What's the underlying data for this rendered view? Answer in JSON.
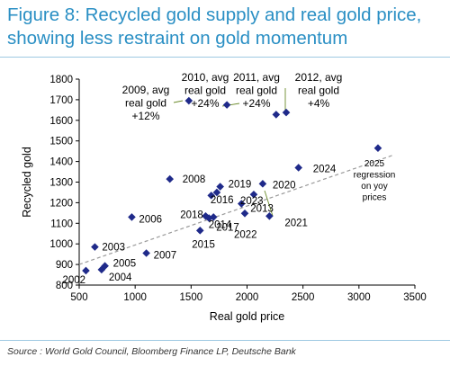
{
  "title": "Figure 8: Recycled gold supply and real gold price, showing less restraint on gold momentum",
  "source": "Source : World Gold Council, Bloomberg Finance LP, Deutsche Bank",
  "chart_data": {
    "type": "scatter",
    "xlabel": "Real gold price",
    "ylabel": "Recycled gold",
    "xlim": [
      500,
      3500
    ],
    "ylim": [
      800,
      1800
    ],
    "xticks": [
      500,
      1000,
      1500,
      2000,
      2500,
      3000,
      3500
    ],
    "yticks": [
      800,
      900,
      1000,
      1100,
      1200,
      1300,
      1400,
      1500,
      1600,
      1700,
      1800
    ],
    "grid": false,
    "marker_color": "#1f2a8a",
    "trendline": {
      "style": "dashed",
      "color": "#9a9a9a",
      "x": [
        500,
        3300
      ],
      "y": [
        900,
        1430
      ]
    },
    "points": [
      {
        "label": "2002",
        "x": 560,
        "y": 870
      },
      {
        "label": "2003",
        "x": 640,
        "y": 985
      },
      {
        "label": "2004",
        "x": 700,
        "y": 875
      },
      {
        "label": "2005",
        "x": 730,
        "y": 893
      },
      {
        "label": "2006",
        "x": 970,
        "y": 1130
      },
      {
        "label": "2007",
        "x": 1100,
        "y": 955
      },
      {
        "label": "2008",
        "x": 1310,
        "y": 1315
      },
      {
        "label": "",
        "x": 1480,
        "y": 1695
      },
      {
        "label": "2015",
        "x": 1580,
        "y": 1065
      },
      {
        "label": "",
        "x": 1630,
        "y": 1135
      },
      {
        "label": "2017",
        "x": 1660,
        "y": 1125
      },
      {
        "label": "2018",
        "x": 1700,
        "y": 1130
      },
      {
        "label": "2014",
        "x": 1680,
        "y": 1235
      },
      {
        "label": "2019",
        "x": 1760,
        "y": 1278
      },
      {
        "label": "2016",
        "x": 1730,
        "y": 1250
      },
      {
        "label": "",
        "x": 1820,
        "y": 1675
      },
      {
        "label": "2013",
        "x": 1950,
        "y": 1195
      },
      {
        "label": "2022",
        "x": 1980,
        "y": 1148
      },
      {
        "label": "2023",
        "x": 2060,
        "y": 1240
      },
      {
        "label": "2020",
        "x": 2140,
        "y": 1292
      },
      {
        "label": "2021",
        "x": 2200,
        "y": 1135
      },
      {
        "label": "",
        "x": 2260,
        "y": 1628
      },
      {
        "label": "",
        "x": 2350,
        "y": 1638
      },
      {
        "label": "2024",
        "x": 2460,
        "y": 1370
      },
      {
        "label": "",
        "x": 3170,
        "y": 1465
      }
    ],
    "annotations": [
      "2009, avg\nreal gold\n+12%",
      "2010, avg\nreal gold\n+24%",
      "2011, avg\nreal gold\n+24%",
      "2012, avg\nreal gold\n+4%",
      "2025\nregression\non yoy\nprices"
    ]
  }
}
